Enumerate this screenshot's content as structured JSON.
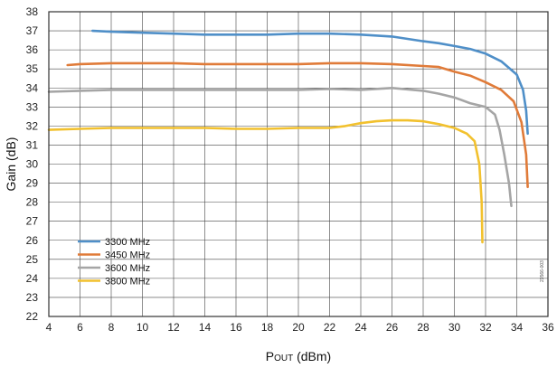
{
  "chart_data": {
    "type": "line",
    "title": "",
    "xlabel_main": "P",
    "xlabel_sub": "OUT",
    "xlabel_unit": " (dBm)",
    "ylabel": "Gain (dB)",
    "xlim": [
      4,
      36
    ],
    "ylim": [
      22,
      38
    ],
    "xticks": [
      4,
      6,
      8,
      10,
      12,
      14,
      16,
      18,
      20,
      22,
      24,
      26,
      28,
      30,
      32,
      34,
      36
    ],
    "yticks": [
      22,
      23,
      24,
      25,
      26,
      27,
      28,
      29,
      30,
      31,
      32,
      33,
      34,
      35,
      36,
      37,
      38
    ],
    "grid": true,
    "legend_position": "lower-left",
    "watermark": "23566-003",
    "series": [
      {
        "name": "3300 MHz",
        "color": "#4f8fc8",
        "x": [
          6.8,
          8,
          10,
          12,
          14,
          16,
          18,
          20,
          22,
          24,
          26,
          28,
          29,
          30,
          31,
          32,
          33,
          34,
          34.4,
          34.6,
          34.7
        ],
        "y": [
          37.0,
          36.95,
          36.9,
          36.85,
          36.8,
          36.8,
          36.8,
          36.85,
          36.85,
          36.8,
          36.7,
          36.45,
          36.35,
          36.2,
          36.05,
          35.8,
          35.4,
          34.7,
          33.9,
          32.8,
          31.6
        ]
      },
      {
        "name": "3450 MHz",
        "color": "#e07b39",
        "x": [
          5.2,
          6,
          8,
          10,
          12,
          14,
          16,
          18,
          20,
          22,
          24,
          26,
          28,
          29,
          30,
          31,
          32,
          33,
          33.8,
          34.3,
          34.6,
          34.7
        ],
        "y": [
          35.2,
          35.25,
          35.3,
          35.3,
          35.3,
          35.25,
          35.25,
          35.25,
          35.25,
          35.3,
          35.3,
          35.25,
          35.15,
          35.1,
          34.85,
          34.65,
          34.3,
          33.9,
          33.3,
          32.2,
          30.5,
          28.8
        ]
      },
      {
        "name": "3600 MHz",
        "color": "#a5a5a5",
        "x": [
          4,
          6,
          8,
          10,
          12,
          14,
          16,
          18,
          20,
          22,
          24,
          26,
          28,
          29,
          30,
          31,
          32,
          32.6,
          32.9,
          33.2,
          33.5,
          33.65
        ],
        "y": [
          33.8,
          33.85,
          33.9,
          33.9,
          33.9,
          33.9,
          33.9,
          33.9,
          33.9,
          33.95,
          33.9,
          34.0,
          33.85,
          33.7,
          33.5,
          33.2,
          33.0,
          32.6,
          31.8,
          30.5,
          29.0,
          27.8
        ]
      },
      {
        "name": "3800 MHz",
        "color": "#f2c12e",
        "x": [
          4,
          6,
          8,
          10,
          12,
          14,
          16,
          18,
          20,
          22,
          23,
          24,
          25,
          26,
          27,
          28,
          29,
          30,
          30.8,
          31.3,
          31.6,
          31.75,
          31.8
        ],
        "y": [
          31.8,
          31.85,
          31.9,
          31.9,
          31.9,
          31.9,
          31.85,
          31.85,
          31.9,
          31.9,
          32.0,
          32.15,
          32.25,
          32.3,
          32.3,
          32.25,
          32.1,
          31.9,
          31.6,
          31.2,
          30.0,
          28.0,
          25.9
        ]
      }
    ]
  }
}
